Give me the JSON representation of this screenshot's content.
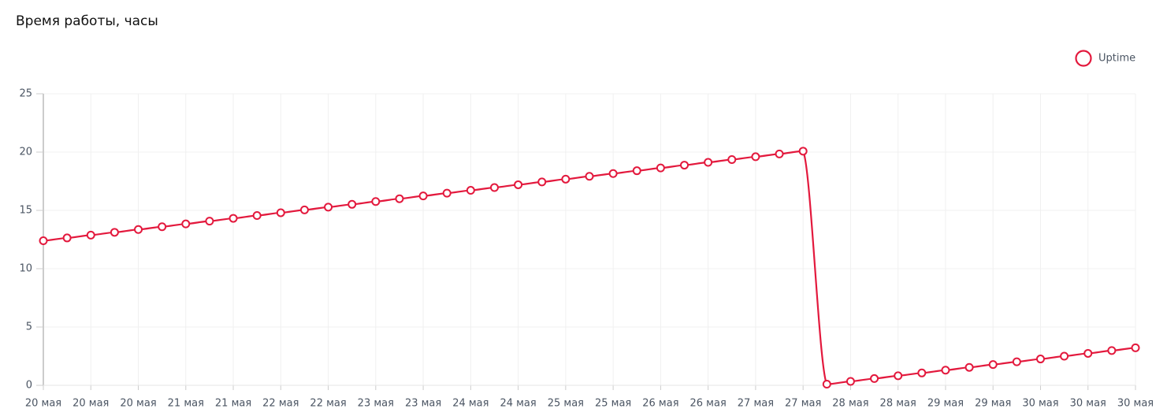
{
  "chart_data": {
    "type": "line",
    "title": "Время работы, часы",
    "categories": [
      "20 мая",
      null,
      "20 мая",
      null,
      "20 мая",
      null,
      "21 мая",
      null,
      "21 мая",
      null,
      "22 мая",
      null,
      "22 мая",
      null,
      "23 мая",
      null,
      "23 мая",
      null,
      "24 мая",
      null,
      "24 мая",
      null,
      "25 мая",
      null,
      "25 мая",
      null,
      "26 мая",
      null,
      "26 мая",
      null,
      "27 мая",
      null,
      "27 мая",
      null,
      "28 мая",
      null,
      "28 мая",
      null,
      "29 мая",
      null,
      "29 мая",
      null,
      "30 мая",
      null,
      "30 мая",
      null,
      "30 мая"
    ],
    "series": [
      {
        "name": "Uptime",
        "color": "#e3193d",
        "values": [
          12.4,
          12.64,
          12.88,
          13.12,
          13.36,
          13.6,
          13.84,
          14.08,
          14.32,
          14.56,
          14.8,
          15.04,
          15.28,
          15.52,
          15.76,
          16,
          16.24,
          16.48,
          16.72,
          16.96,
          17.2,
          17.44,
          17.68,
          17.92,
          18.16,
          18.4,
          18.64,
          18.88,
          19.12,
          19.36,
          19.6,
          19.84,
          20.08,
          0.1,
          0.34,
          0.58,
          0.82,
          1.06,
          1.3,
          1.54,
          1.78,
          2.02,
          2.26,
          2.5,
          2.74,
          2.98,
          3.22
        ]
      }
    ],
    "ylim": [
      0,
      25
    ],
    "yticks": [
      0,
      5,
      10,
      15,
      20,
      25
    ],
    "grid": true,
    "legend": "top-right"
  }
}
